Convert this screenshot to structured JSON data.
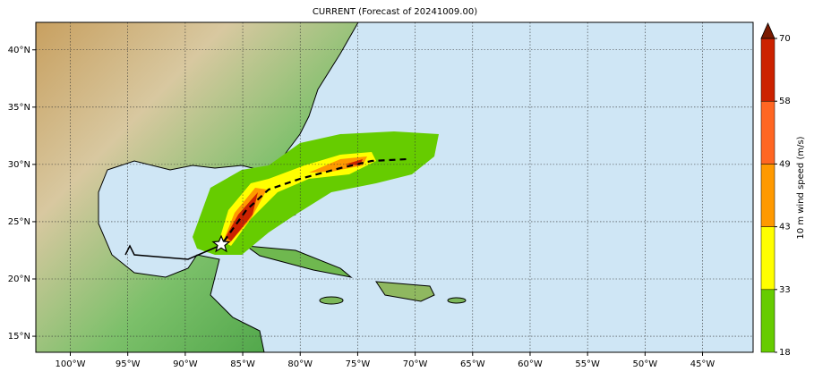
{
  "title": "CURRENT (Forecast of 20241009.00)",
  "map": {
    "xlim": [
      -103,
      -40.6
    ],
    "ylim": [
      13.6,
      42.4
    ],
    "xticks": [
      {
        "value": -100,
        "label": "100°W"
      },
      {
        "value": -95,
        "label": "95°W"
      },
      {
        "value": -90,
        "label": "90°W"
      },
      {
        "value": -85,
        "label": "85°W"
      },
      {
        "value": -80,
        "label": "80°W"
      },
      {
        "value": -75,
        "label": "75°W"
      },
      {
        "value": -70,
        "label": "70°W"
      },
      {
        "value": -65,
        "label": "65°W"
      },
      {
        "value": -60,
        "label": "60°W"
      },
      {
        "value": -55,
        "label": "55°W"
      },
      {
        "value": -50,
        "label": "50°W"
      },
      {
        "value": -45,
        "label": "45°W"
      }
    ],
    "yticks": [
      {
        "value": 15,
        "label": "15°N"
      },
      {
        "value": 20,
        "label": "20°N"
      },
      {
        "value": 25,
        "label": "25°N"
      },
      {
        "value": 30,
        "label": "30°N"
      },
      {
        "value": 35,
        "label": "35°N"
      },
      {
        "value": 40,
        "label": "40°N"
      }
    ],
    "grid": true
  },
  "colorbar": {
    "label": "10 m wind speed (m/s)",
    "ticks": [
      18,
      33,
      43,
      49,
      58,
      70
    ],
    "colors": [
      "#66cc00",
      "#ffff00",
      "#ff9900",
      "#ff6622",
      "#cc2200"
    ],
    "extend_color": "#7a1a00"
  }
}
